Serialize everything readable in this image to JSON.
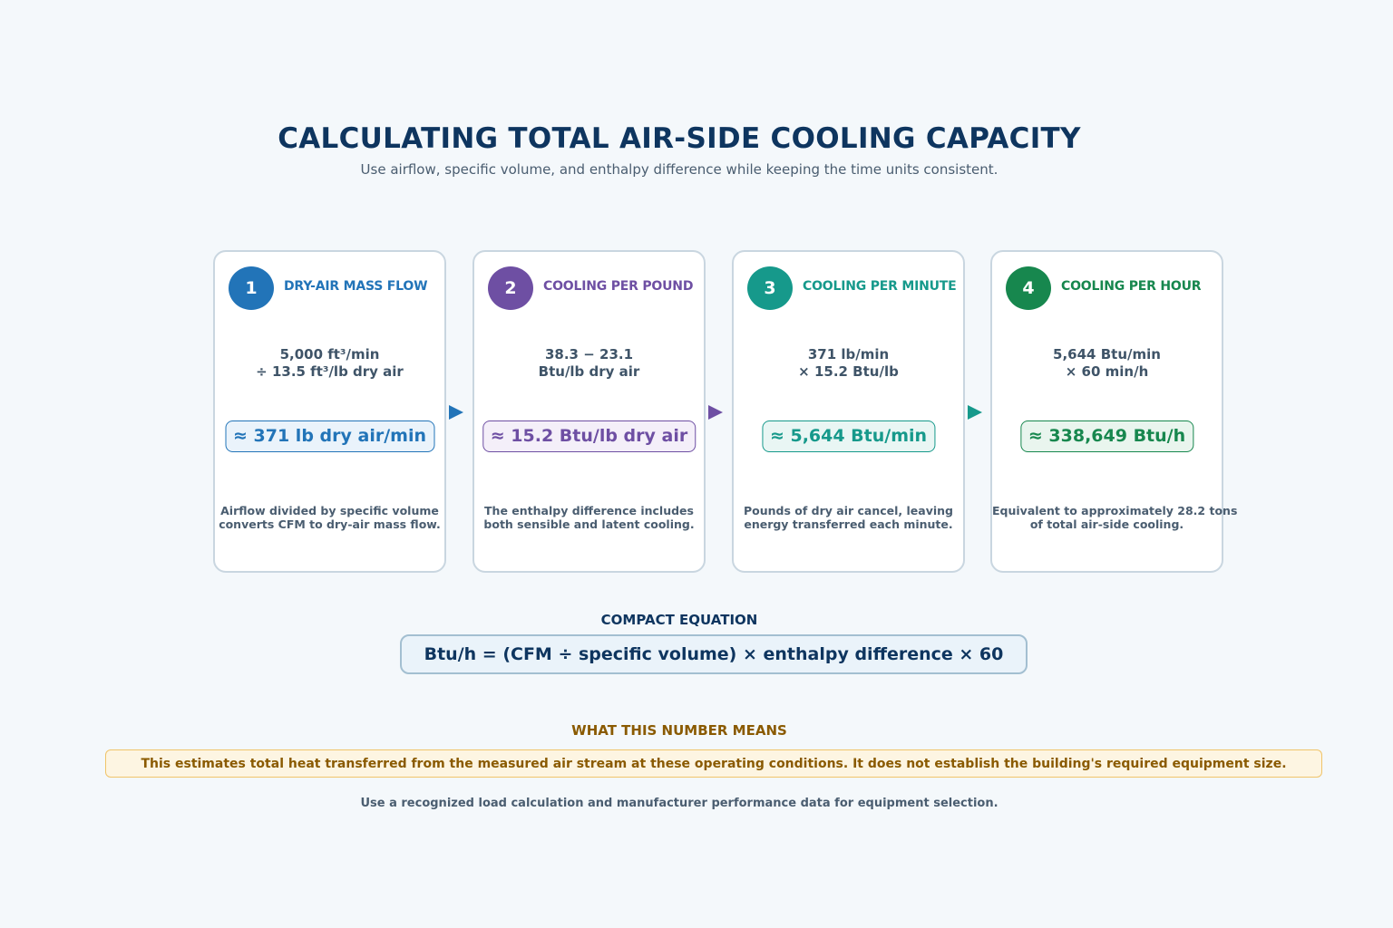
{
  "header": {
    "title": "CALCULATING TOTAL AIR-SIDE COOLING CAPACITY",
    "subtitle": "Use airflow, specific volume, and enthalpy difference while keeping the time units consistent."
  },
  "steps": [
    {
      "number": "1",
      "title": "DRY-AIR MASS FLOW",
      "calc_line1": "5,000 ft³/min",
      "calc_line2": "÷ 13.5 ft³/lb dry air",
      "result": "≈ 371 lb dry air/min",
      "note_line1": "Airflow divided by specific volume",
      "note_line2": "converts CFM to dry-air mass flow.",
      "color": "#2274b8",
      "result_bg": "#eaf3fb"
    },
    {
      "number": "2",
      "title": "COOLING PER POUND",
      "calc_line1": "38.3 − 23.1",
      "calc_line2": "Btu/lb dry air",
      "result": "≈ 15.2 Btu/lb dry air",
      "note_line1": "The enthalpy difference includes",
      "note_line2": "both sensible and latent cooling.",
      "color": "#6e4fa3",
      "result_bg": "#f4eff9"
    },
    {
      "number": "3",
      "title": "COOLING PER MINUTE",
      "calc_line1": "371 lb/min",
      "calc_line2": "× 15.2 Btu/lb",
      "result": "≈ 5,644 Btu/min",
      "note_line1": "Pounds of dry air cancel, leaving",
      "note_line2": "energy transferred each minute.",
      "color": "#16998b",
      "result_bg": "#e9f6f4"
    },
    {
      "number": "4",
      "title": "COOLING PER HOUR",
      "calc_line1": "5,644 Btu/min",
      "calc_line2": "× 60 min/h",
      "result": "≈ 338,649 Btu/h",
      "note_line1": "Equivalent to approximately 28.2 tons",
      "note_line2": "of total air-side cooling.",
      "color": "#17874e",
      "result_bg": "#e9f5ee"
    }
  ],
  "equation": {
    "label": "COMPACT EQUATION",
    "text": "Btu/h = (CFM ÷ specific volume) × enthalpy difference × 60"
  },
  "meaning": {
    "label": "WHAT THIS NUMBER MEANS",
    "text": "This estimates total heat transferred from the measured air stream at these operating conditions. It does not establish the building's required equipment size."
  },
  "footer": {
    "text": "Use a recognized load calculation and manufacturer performance data for equipment selection."
  }
}
